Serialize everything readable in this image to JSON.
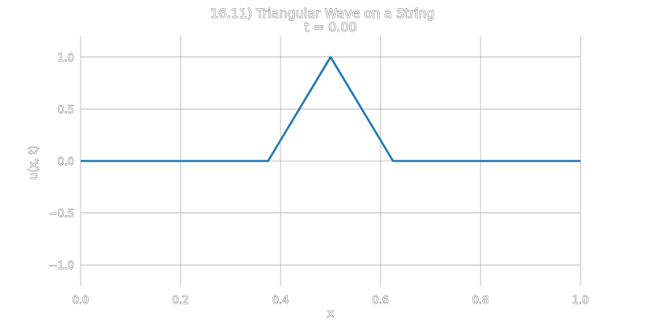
{
  "chart_data": {
    "type": "line",
    "title": "16.11) Triangular Wave on a String",
    "subtitle": "t = 0.00",
    "xlabel": "x",
    "ylabel": "u(x, t)",
    "xlim": [
      0.0,
      1.0
    ],
    "ylim": [
      -1.2,
      1.2
    ],
    "x_ticks": [
      0.0,
      0.2,
      0.4,
      0.6,
      0.8,
      1.0
    ],
    "x_tick_labels": [
      "0.0",
      "0.2",
      "0.4",
      "0.6",
      "0.8",
      "1.0"
    ],
    "y_ticks": [
      -1.0,
      -0.5,
      0.0,
      0.5,
      1.0
    ],
    "y_tick_labels": [
      "−1.0",
      "−0.5",
      "0.0",
      "0.5",
      "1.0"
    ],
    "grid": true,
    "series": [
      {
        "color": "#1f77b4",
        "x": [
          0.0,
          0.375,
          0.5,
          0.625,
          1.0
        ],
        "y": [
          0.0,
          0.0,
          1.0,
          0.0,
          0.0
        ]
      }
    ]
  }
}
